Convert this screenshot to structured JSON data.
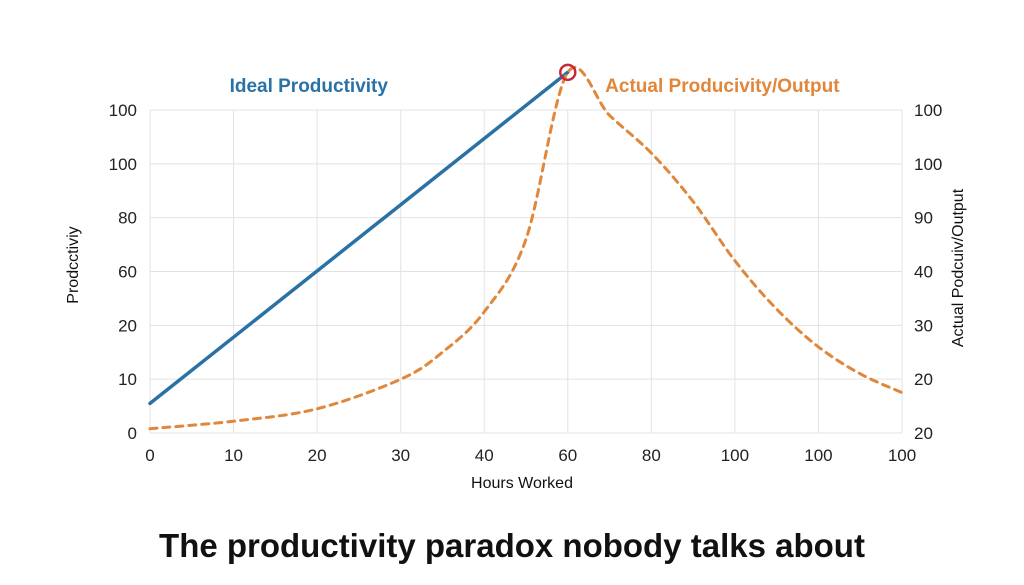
{
  "chart_data": {
    "type": "line",
    "title": "",
    "xlabel": "Hours Worked",
    "ylabel_left": "Prodcctiviy",
    "ylabel_right": "Actual Podcuiv/Output",
    "x_ticks": [
      "0",
      "10",
      "20",
      "30",
      "40",
      "60",
      "80",
      "100",
      "100",
      "100"
    ],
    "y_left_ticks": [
      "0",
      "10",
      "20",
      "60",
      "80",
      "100",
      "100"
    ],
    "y_right_ticks": [
      "20",
      "20",
      "30",
      "40",
      "90",
      "100",
      "100"
    ],
    "grid": true,
    "series": [
      {
        "name": "Ideal Productivity",
        "style": "solid",
        "color": "#2a72a6",
        "x_index": [
          0,
          5
        ],
        "y_index": [
          0.55,
          6.7
        ]
      },
      {
        "name": "Actual Producivity/Output",
        "style": "dashed",
        "color": "#e0873c",
        "x_index": [
          0,
          1,
          2,
          3,
          3.5,
          4,
          4.5,
          5,
          5.5,
          6,
          6.5,
          7,
          7.5,
          8,
          8.5,
          9
        ],
        "y_index": [
          0.08,
          0.22,
          0.45,
          1.0,
          1.5,
          2.25,
          3.6,
          6.7,
          5.9,
          5.2,
          4.3,
          3.2,
          2.3,
          1.6,
          1.1,
          0.75
        ]
      }
    ],
    "peak_marker": {
      "x_index": 5,
      "y_index": 6.7,
      "color": "#c62a3a"
    }
  },
  "caption": "The productivity paradox nobody talks about"
}
